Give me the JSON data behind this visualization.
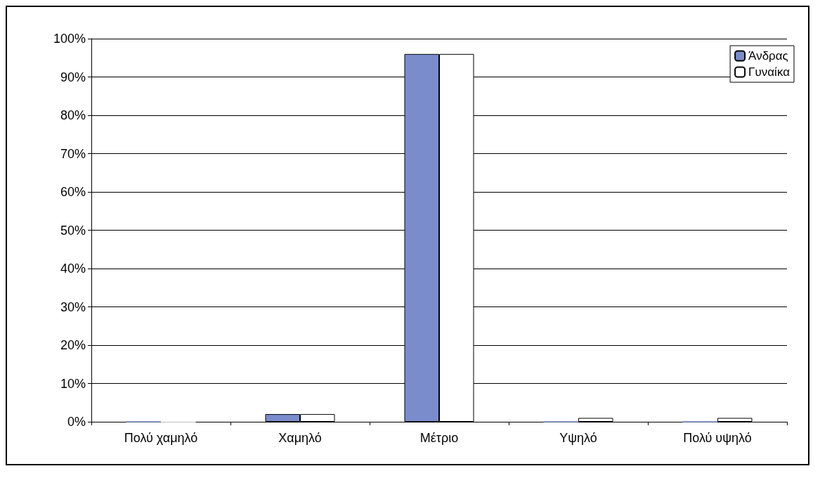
{
  "chart_data": {
    "type": "bar",
    "categories": [
      "Πολύ χαμηλό",
      "Χαμηλό",
      "Μέτριο",
      "Υψηλό",
      "Πολύ υψηλό"
    ],
    "series": [
      {
        "name": "Άνδρας",
        "color": "#7b8ccc",
        "values": [
          0,
          2,
          96,
          0,
          0
        ]
      },
      {
        "name": "Γυναίκα",
        "color": "#ffffff",
        "values": [
          0,
          2,
          96,
          1,
          1
        ]
      }
    ],
    "ylim": [
      0,
      100
    ],
    "yticks": [
      {
        "value": 0,
        "label": "0%"
      },
      {
        "value": 10,
        "label": "10%"
      },
      {
        "value": 20,
        "label": "20%"
      },
      {
        "value": 30,
        "label": "30%"
      },
      {
        "value": 40,
        "label": "40%"
      },
      {
        "value": 50,
        "label": "50%"
      },
      {
        "value": 60,
        "label": "60%"
      },
      {
        "value": 70,
        "label": "70%"
      },
      {
        "value": 80,
        "label": "80%"
      },
      {
        "value": 90,
        "label": "90%"
      },
      {
        "value": 100,
        "label": "100%"
      }
    ],
    "grid": "y",
    "legend": "top right"
  }
}
